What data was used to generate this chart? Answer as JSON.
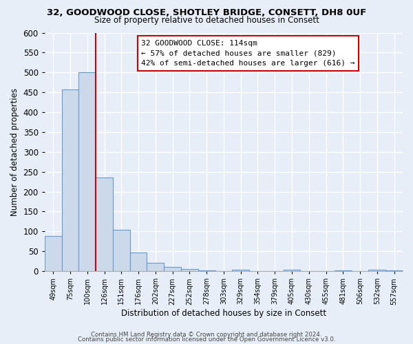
{
  "title": "32, GOODWOOD CLOSE, SHOTLEY BRIDGE, CONSETT, DH8 0UF",
  "subtitle": "Size of property relative to detached houses in Consett",
  "xlabel": "Distribution of detached houses by size in Consett",
  "ylabel": "Number of detached properties",
  "bar_color": "#ccd9ea",
  "bar_edge_color": "#6699cc",
  "background_color": "#e8eef8",
  "grid_color": "#ffffff",
  "categories": [
    "49sqm",
    "75sqm",
    "100sqm",
    "126sqm",
    "151sqm",
    "176sqm",
    "202sqm",
    "227sqm",
    "252sqm",
    "278sqm",
    "303sqm",
    "329sqm",
    "354sqm",
    "379sqm",
    "405sqm",
    "430sqm",
    "455sqm",
    "481sqm",
    "506sqm",
    "532sqm",
    "557sqm"
  ],
  "values": [
    88,
    457,
    500,
    236,
    104,
    46,
    20,
    11,
    6,
    2,
    0,
    4,
    0,
    0,
    3,
    0,
    0,
    2,
    0,
    3,
    2
  ],
  "ylim": [
    0,
    600
  ],
  "yticks": [
    0,
    50,
    100,
    150,
    200,
    250,
    300,
    350,
    400,
    450,
    500,
    550,
    600
  ],
  "vline_color": "#cc0000",
  "vline_index": 2,
  "annotation_text": "32 GOODWOOD CLOSE: 114sqm\n← 57% of detached houses are smaller (829)\n42% of semi-detached houses are larger (616) →",
  "annotation_box_color": "#ffffff",
  "annotation_box_edge": "#cc0000",
  "footer_line1": "Contains HM Land Registry data © Crown copyright and database right 2024.",
  "footer_line2": "Contains public sector information licensed under the Open Government Licence v3.0."
}
